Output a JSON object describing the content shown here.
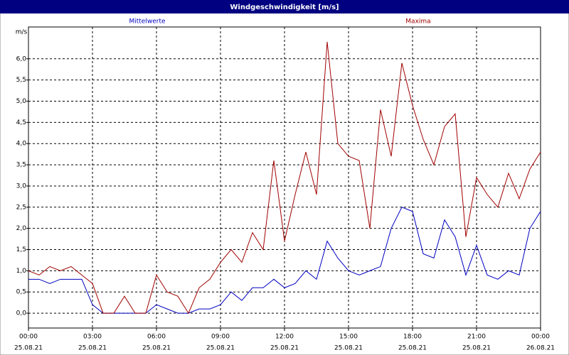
{
  "chart_data": {
    "type": "line",
    "title": "Windgeschwindigkeit [m/s]",
    "y_unit": "m/s",
    "xlim": [
      0,
      24
    ],
    "ylim": [
      -0.35,
      6.75
    ],
    "grid": true,
    "xticks": [
      {
        "value": 0,
        "label": "00:00",
        "date": "25.08.21"
      },
      {
        "value": 3,
        "label": "03:00",
        "date": "25.08.21"
      },
      {
        "value": 6,
        "label": "06:00",
        "date": "25.08.21"
      },
      {
        "value": 9,
        "label": "09:00",
        "date": "25.08.21"
      },
      {
        "value": 12,
        "label": "12:00",
        "date": "25.08.21"
      },
      {
        "value": 15,
        "label": "15:00",
        "date": "25.08.21"
      },
      {
        "value": 18,
        "label": "18:00",
        "date": "25.08.21"
      },
      {
        "value": 21,
        "label": "21:00",
        "date": "25.08.21"
      },
      {
        "value": 24,
        "label": "00:00",
        "date": "26.08.21"
      }
    ],
    "yticks": [
      {
        "value": 0,
        "label": "0,0"
      },
      {
        "value": 0.5,
        "label": "0,5"
      },
      {
        "value": 1,
        "label": "1,0"
      },
      {
        "value": 1.5,
        "label": "1,5"
      },
      {
        "value": 2,
        "label": "2,0"
      },
      {
        "value": 2.5,
        "label": "2,5"
      },
      {
        "value": 3,
        "label": "3,0"
      },
      {
        "value": 3.5,
        "label": "3,5"
      },
      {
        "value": 4,
        "label": "4,0"
      },
      {
        "value": 4.5,
        "label": "4,5"
      },
      {
        "value": 5,
        "label": "5,0"
      },
      {
        "value": 5.5,
        "label": "5,5"
      },
      {
        "value": 6,
        "label": "6,0"
      }
    ],
    "x": [
      0,
      0.5,
      1,
      1.5,
      2,
      2.5,
      3,
      3.5,
      4,
      4.5,
      5,
      5.5,
      6,
      6.5,
      7,
      7.5,
      8,
      8.5,
      9,
      9.5,
      10,
      10.5,
      11,
      11.5,
      12,
      12.5,
      13,
      13.5,
      14,
      14.5,
      15,
      15.5,
      16,
      16.5,
      17,
      17.5,
      18,
      18.5,
      19,
      19.5,
      20,
      20.5,
      21,
      21.5,
      22,
      22.5,
      23,
      23.5,
      24
    ],
    "series": [
      {
        "name": "Mittelwerte",
        "color": "#0000c0",
        "values": [
          0.8,
          0.8,
          0.7,
          0.8,
          0.8,
          0.8,
          0.2,
          0.0,
          0.0,
          0.0,
          0.0,
          0.0,
          0.2,
          0.1,
          0.0,
          0.0,
          0.1,
          0.1,
          0.2,
          0.5,
          0.3,
          0.6,
          0.6,
          0.8,
          0.6,
          0.7,
          1.0,
          0.8,
          1.7,
          1.3,
          1.0,
          0.9,
          1.0,
          1.1,
          2.0,
          2.5,
          2.4,
          1.4,
          1.3,
          2.2,
          1.8,
          0.9,
          1.6,
          0.9,
          0.8,
          1.0,
          0.9,
          2.0,
          2.4
        ]
      },
      {
        "name": "Maxima",
        "color": "#a00000",
        "values": [
          1.0,
          0.9,
          1.1,
          1.0,
          1.1,
          0.9,
          0.7,
          0.0,
          0.0,
          0.4,
          0.0,
          0.0,
          0.9,
          0.5,
          0.4,
          0.0,
          0.6,
          0.8,
          1.2,
          1.5,
          1.2,
          1.9,
          1.5,
          3.6,
          1.7,
          2.8,
          3.8,
          2.8,
          6.4,
          4.0,
          3.7,
          3.6,
          2.0,
          4.8,
          3.7,
          5.9,
          4.9,
          4.1,
          3.5,
          4.4,
          4.7,
          1.8,
          3.2,
          2.8,
          2.5,
          3.3,
          2.7,
          3.4,
          3.8
        ]
      }
    ]
  }
}
